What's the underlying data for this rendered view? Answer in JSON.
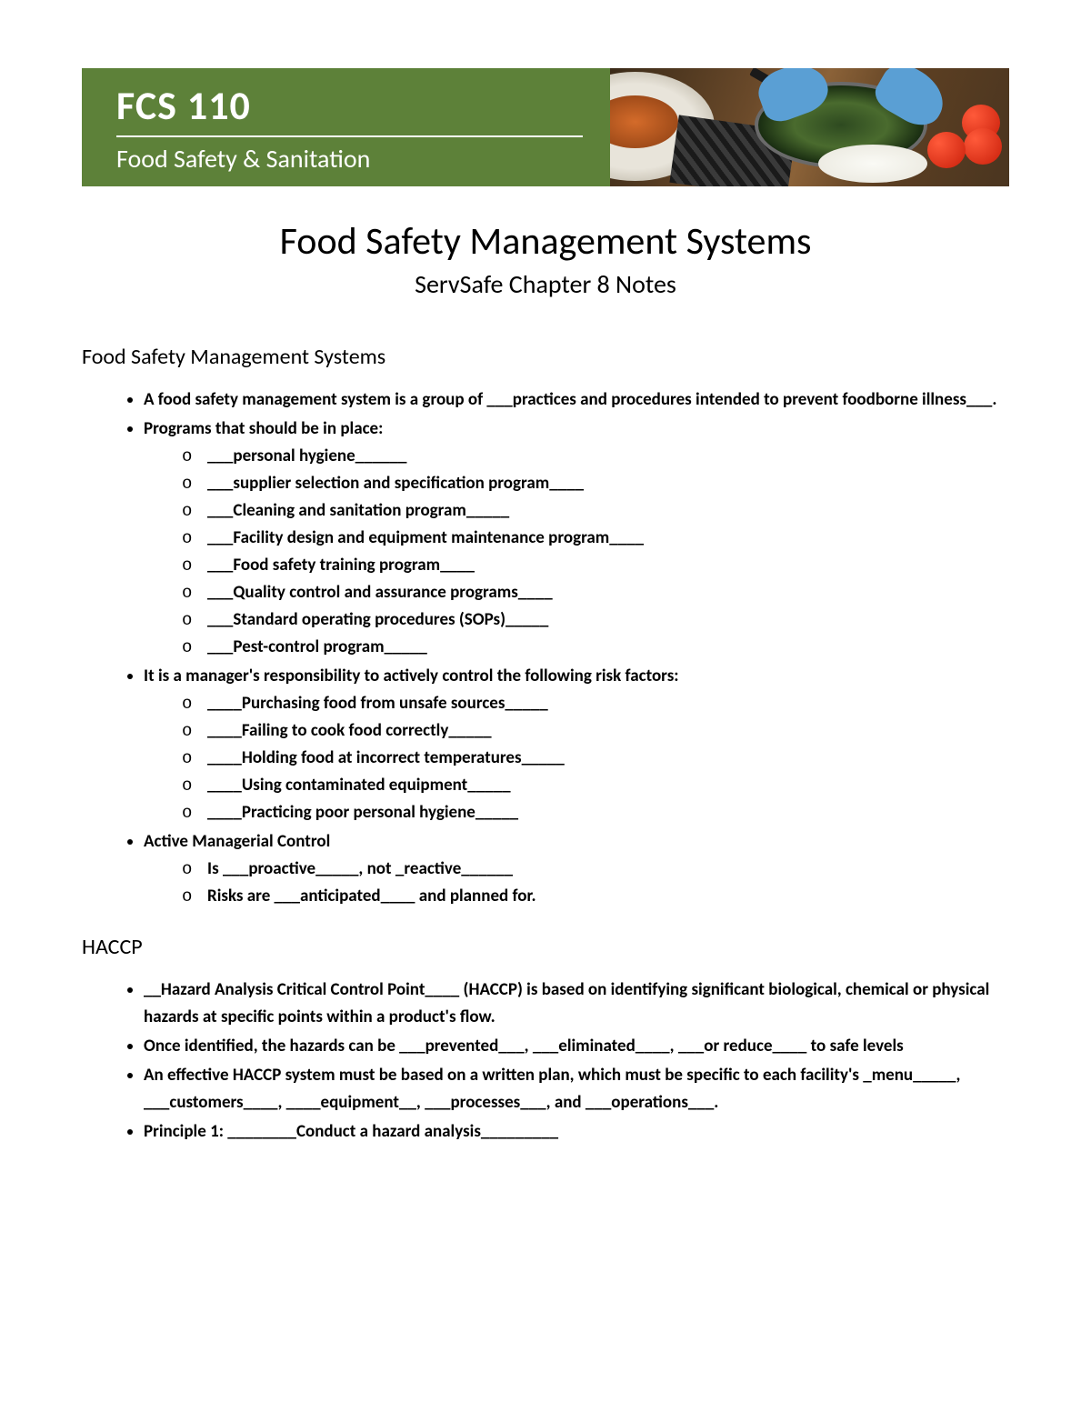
{
  "banner": {
    "course_code": "FCS 110",
    "course_name": "Food Safety & Sanitation",
    "bg_color": "#5d8139",
    "text_color": "#ffffff"
  },
  "page": {
    "title": "Food Safety Management Systems",
    "subtitle": "ServSafe Chapter 8 Notes"
  },
  "section1": {
    "heading": "Food Safety Management Systems",
    "b1": "A food safety management system is a group of ___practices and procedures intended to prevent foodborne illness___.",
    "b2": "Programs that should be in place:",
    "b2_items": [
      "___personal hygiene______",
      "___supplier selection and specification program____",
      "___Cleaning and sanitation program_____",
      "___Facility design and equipment maintenance program____",
      "___Food safety training program____",
      "___Quality control and assurance programs____",
      "___Standard operating procedures (SOPs)_____",
      "___Pest-control program_____"
    ],
    "b3": "It is a manager's responsibility to actively control the following risk factors:",
    "b3_items": [
      "____Purchasing food from unsafe sources_____",
      "____Failing to cook food correctly_____",
      "____Holding food at incorrect temperatures_____",
      "____Using contaminated equipment_____",
      "____Practicing poor personal hygiene_____"
    ],
    "b4": "Active Managerial Control",
    "b4_item1_pre": "Is ___proactive_____, ",
    "b4_item1_bold": "not",
    "b4_item1_post": " _reactive______",
    "b4_item2": "Risks are ___anticipated____ and planned for."
  },
  "section2": {
    "heading": "HACCP",
    "b1": "__Hazard Analysis Critical Control Point____ (HACCP) is based on identifying significant biological, chemical or physical hazards at specific points within a product's flow.",
    "b2": "Once identified, the hazards can be ___prevented___, ___eliminated____, ___or reduce____ to safe levels",
    "b3": "An effective HACCP system must be based on a written plan, which must be specific to each facility's _menu_____, ___customers____, ____equipment__, ___processes___, and ___operations___.",
    "b4": "Principle 1: ________Conduct a hazard analysis_________"
  },
  "style": {
    "body_font": "Calibri",
    "body_fontsize_pt": 14,
    "heading_fontsize_pt": 18,
    "title_fontsize_pt": 32,
    "subtitle_fontsize_pt": 21,
    "text_color": "#000000",
    "background_color": "#ffffff"
  }
}
